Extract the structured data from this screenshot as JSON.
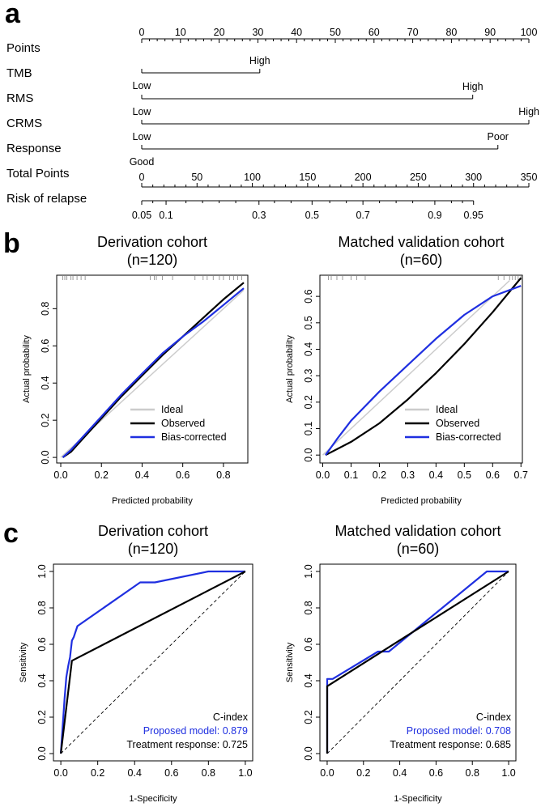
{
  "panel_labels": [
    "a",
    "b",
    "c"
  ],
  "chart_data": [
    {
      "type": "nomogram",
      "panel": "a",
      "rows": [
        {
          "name": "Points",
          "kind": "axis",
          "min": 0,
          "max": 100,
          "ticks": [
            0,
            10,
            20,
            30,
            40,
            50,
            60,
            70,
            80,
            90,
            100
          ]
        },
        {
          "name": "TMB",
          "kind": "variable",
          "levels": [
            {
              "label": "Low",
              "points": 0
            },
            {
              "label": "High",
              "points": 30.5
            }
          ]
        },
        {
          "name": "RMS",
          "kind": "variable",
          "levels": [
            {
              "label": "Low",
              "points": 0
            },
            {
              "label": "High",
              "points": 85.5
            }
          ]
        },
        {
          "name": "CRMS",
          "kind": "variable",
          "levels": [
            {
              "label": "Low",
              "points": 0
            },
            {
              "label": "High",
              "points": 100
            }
          ]
        },
        {
          "name": "Response",
          "kind": "variable",
          "levels": [
            {
              "label": "Good",
              "points": 0
            },
            {
              "label": "Poor",
              "points": 92
            }
          ]
        },
        {
          "name": "Total Points",
          "kind": "axis",
          "min": 0,
          "max": 350,
          "ticks": [
            0,
            50,
            100,
            150,
            200,
            250,
            300,
            350
          ]
        },
        {
          "name": "Risk of relapse",
          "kind": "risk",
          "labels": [
            "0.05",
            "0.1",
            "0.3",
            "0.5",
            "0.7",
            "0.9",
            "0.95"
          ],
          "total_points": [
            0,
            22,
            106,
            154,
            200,
            265,
            300
          ]
        }
      ]
    },
    {
      "type": "line",
      "panel": "b",
      "title": "Derivation cohort",
      "subtitle": "(n=120)",
      "xlabel": "Predicted probability",
      "ylabel": "Actual probability",
      "xlim": [
        -0.02,
        0.92
      ],
      "ylim": [
        -0.03,
        0.98
      ],
      "xticks": [
        "0.0",
        "0.2",
        "0.4",
        "0.6",
        "0.8"
      ],
      "yticks": [
        "0.0",
        "0.2",
        "0.4",
        "0.6",
        "0.8"
      ],
      "legend": {
        "position": "bottom-right",
        "entries": [
          "Ideal",
          "Observed",
          "Bias-corrected"
        ]
      },
      "series": [
        {
          "name": "Ideal",
          "color": "#cccccc",
          "x": [
            0.0,
            0.9
          ],
          "y": [
            0.0,
            0.9
          ]
        },
        {
          "name": "Observed",
          "color": "#000000",
          "x": [
            0.01,
            0.05,
            0.1,
            0.2,
            0.3,
            0.4,
            0.5,
            0.6,
            0.7,
            0.8,
            0.9
          ],
          "y": [
            0.0,
            0.03,
            0.09,
            0.21,
            0.33,
            0.44,
            0.55,
            0.65,
            0.75,
            0.85,
            0.94
          ]
        },
        {
          "name": "Bias-corrected",
          "color": "#1f2fe0",
          "x": [
            0.01,
            0.05,
            0.1,
            0.2,
            0.3,
            0.4,
            0.5,
            0.6,
            0.7,
            0.8,
            0.9
          ],
          "y": [
            0.0,
            0.04,
            0.1,
            0.22,
            0.34,
            0.45,
            0.56,
            0.65,
            0.73,
            0.82,
            0.91
          ]
        }
      ],
      "rug_x": [
        0.01,
        0.02,
        0.03,
        0.05,
        0.06,
        0.08,
        0.1,
        0.12,
        0.44,
        0.46,
        0.47,
        0.5,
        0.55,
        0.66,
        0.7,
        0.72,
        0.75,
        0.78,
        0.8,
        0.83,
        0.85,
        0.87,
        0.89
      ]
    },
    {
      "type": "line",
      "panel": "b",
      "title": "Matched validation cohort",
      "subtitle": "(n=60)",
      "xlabel": "Predicted probability",
      "ylabel": "Actual probability",
      "xlim": [
        -0.01,
        0.705
      ],
      "ylim": [
        -0.03,
        0.68
      ],
      "xticks": [
        "0.0",
        "0.1",
        "0.2",
        "0.3",
        "0.4",
        "0.5",
        "0.6",
        "0.7"
      ],
      "yticks": [
        "0.0",
        "0.1",
        "0.2",
        "0.3",
        "0.4",
        "0.5",
        "0.6"
      ],
      "legend": {
        "position": "bottom-right",
        "entries": [
          "Ideal",
          "Observed",
          "Bias-corrected"
        ]
      },
      "series": [
        {
          "name": "Ideal",
          "color": "#cccccc",
          "x": [
            0.0,
            0.66
          ],
          "y": [
            0.0,
            0.66
          ]
        },
        {
          "name": "Observed",
          "color": "#000000",
          "x": [
            0.01,
            0.1,
            0.2,
            0.3,
            0.4,
            0.5,
            0.6,
            0.7
          ],
          "y": [
            0.0,
            0.05,
            0.12,
            0.21,
            0.31,
            0.42,
            0.54,
            0.67
          ]
        },
        {
          "name": "Bias-corrected",
          "color": "#1f2fe0",
          "x": [
            0.01,
            0.05,
            0.1,
            0.2,
            0.3,
            0.4,
            0.5,
            0.6,
            0.7
          ],
          "y": [
            0.0,
            0.06,
            0.13,
            0.24,
            0.34,
            0.44,
            0.53,
            0.6,
            0.64
          ]
        }
      ],
      "rug_x": [
        0.02,
        0.03,
        0.05,
        0.07,
        0.1,
        0.12,
        0.15,
        0.62,
        0.64,
        0.66,
        0.67,
        0.68,
        0.69,
        0.7
      ]
    },
    {
      "type": "line",
      "panel": "c",
      "title": "Derivation cohort",
      "subtitle": "(n=120)",
      "xlabel": "1-Specificity",
      "ylabel": "Sensitivity",
      "xlim": [
        -0.04,
        1.04
      ],
      "ylim": [
        -0.04,
        1.04
      ],
      "xticks": [
        "0.0",
        "0.2",
        "0.4",
        "0.6",
        "0.8",
        "1.0"
      ],
      "yticks": [
        "0.0",
        "0.2",
        "0.4",
        "0.6",
        "0.8",
        "1.0"
      ],
      "annotation": {
        "heading": "C-index",
        "lines": [
          {
            "text": "Proposed model: 0.879",
            "color": "#1f2fe0"
          },
          {
            "text": "Treatment response: 0.725",
            "color": "#000000"
          }
        ]
      },
      "series": [
        {
          "name": "Reference",
          "color": "#000000",
          "dashed": true,
          "x": [
            0,
            1
          ],
          "y": [
            0,
            1
          ]
        },
        {
          "name": "Proposed model",
          "color": "#1f2fe0",
          "x": [
            0.0,
            0.01,
            0.02,
            0.03,
            0.04,
            0.05,
            0.06,
            0.07,
            0.09,
            0.43,
            0.44,
            0.51,
            0.8,
            1.0
          ],
          "y": [
            0.0,
            0.15,
            0.3,
            0.42,
            0.48,
            0.53,
            0.62,
            0.64,
            0.7,
            0.94,
            0.94,
            0.94,
            1.0,
            1.0
          ]
        },
        {
          "name": "Treatment response",
          "color": "#000000",
          "x": [
            0.0,
            0.06,
            1.0
          ],
          "y": [
            0.0,
            0.51,
            1.0
          ]
        }
      ]
    },
    {
      "type": "line",
      "panel": "c",
      "title": "Matched validation cohort",
      "subtitle": "(n=60)",
      "xlabel": "1-Specificity",
      "ylabel": "Sensitivity",
      "xlim": [
        -0.04,
        1.04
      ],
      "ylim": [
        -0.04,
        1.04
      ],
      "xticks": [
        "0.0",
        "0.2",
        "0.4",
        "0.6",
        "0.8",
        "1.0"
      ],
      "yticks": [
        "0.0",
        "0.2",
        "0.4",
        "0.6",
        "0.8",
        "1.0"
      ],
      "annotation": {
        "heading": "C-index",
        "lines": [
          {
            "text": "Proposed model: 0.708",
            "color": "#1f2fe0"
          },
          {
            "text": "Treatment response: 0.685",
            "color": "#000000"
          }
        ]
      },
      "series": [
        {
          "name": "Reference",
          "color": "#000000",
          "dashed": true,
          "x": [
            0,
            1
          ],
          "y": [
            0,
            1
          ]
        },
        {
          "name": "Proposed model",
          "color": "#1f2fe0",
          "x": [
            0.0,
            0.0,
            0.03,
            0.28,
            0.32,
            0.34,
            0.88,
            1.0
          ],
          "y": [
            0.0,
            0.41,
            0.41,
            0.56,
            0.56,
            0.56,
            1.0,
            1.0
          ]
        },
        {
          "name": "Treatment response",
          "color": "#000000",
          "x": [
            0.0,
            0.0,
            1.0
          ],
          "y": [
            0.0,
            0.37,
            1.0
          ]
        }
      ]
    }
  ]
}
